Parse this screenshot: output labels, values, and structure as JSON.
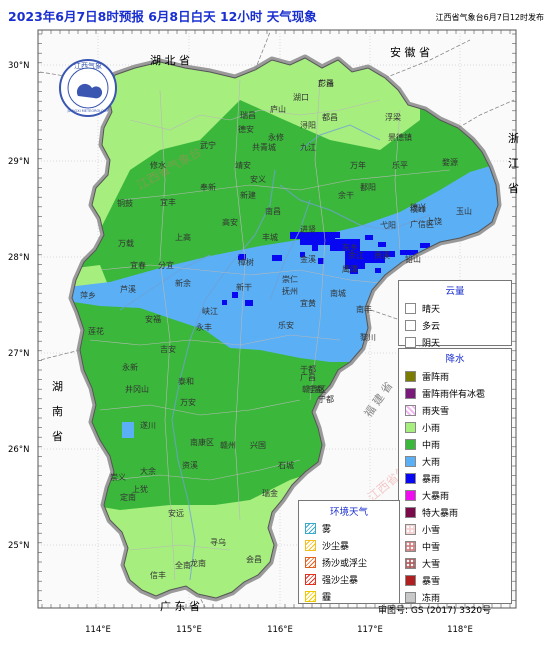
{
  "title": "2023年6月7日8时预报 6月8日白天 12小时 天气现象",
  "publisher": "江西省气象台6月7日12时发布",
  "logo": {
    "text": "江西气象",
    "subtext": "JIANGXI METEOROLOGY"
  },
  "lat_labels": [
    "30°N",
    "29°N",
    "28°N",
    "27°N",
    "26°N",
    "25°N"
  ],
  "lon_labels": [
    "114°E",
    "115°E",
    "116°E",
    "117°E",
    "118°E"
  ],
  "neighbor_provinces": {
    "hubei": "湖 北 省",
    "anhui": "安 徽 省",
    "zhejiang": [
      "浙",
      "江",
      "省"
    ],
    "hunan": [
      "湖",
      "南",
      "省"
    ],
    "fujian": [
      "福",
      "建",
      "省"
    ],
    "guangdong": "广 东 省"
  },
  "cities": [
    "彭泽",
    "湖口",
    "都昌",
    "瑞昌",
    "庐山",
    "浔阳",
    "修水",
    "武宁",
    "德安",
    "共青城",
    "永修",
    "九江",
    "浮梁",
    "景德镇",
    "乐平",
    "婺源",
    "万年",
    "德兴",
    "余干",
    "鄱阳",
    "靖安",
    "奉新",
    "安义",
    "南昌",
    "新建",
    "进贤",
    "高安",
    "丰城",
    "铜鼓",
    "宜丰",
    "上高",
    "万载",
    "宜春",
    "分宜",
    "新余",
    "樟树",
    "新干",
    "峡江",
    "萍乡",
    "芦溪",
    "莲花",
    "吉安",
    "安福",
    "永丰",
    "泰和",
    "万安",
    "遂川",
    "井冈山",
    "永新",
    "抚州",
    "崇仁",
    "宜黄",
    "南城",
    "南丰",
    "黎川",
    "广昌",
    "乐安",
    "鹰潭",
    "贵溪",
    "余江",
    "上饶",
    "玉山",
    "广信区",
    "铅山",
    "横峰",
    "弋阳",
    "东乡",
    "金溪",
    "资溪",
    "赣州",
    "兴国",
    "于都",
    "宁都",
    "石城",
    "瑞金",
    "会昌",
    "寻乌",
    "安远",
    "信丰",
    "全南",
    "龙南",
    "定南",
    "大余",
    "崇义",
    "上犹",
    "南康区",
    "赣县区",
    "宁都",
    "广昌"
  ],
  "cloud_legend": {
    "title": "云量",
    "items": [
      "晴天",
      "多云",
      "阴天"
    ]
  },
  "precip_legend": {
    "title": "降水",
    "items": [
      {
        "label": "雷阵雨",
        "color": "#7b7b00"
      },
      {
        "label": "雷阵雨伴有冰雹",
        "color": "#7a1a7a"
      },
      {
        "label": "雨夹雪",
        "color": "#f2b8f2",
        "pattern": "hatch"
      },
      {
        "label": "小雨",
        "color": "#a6ee7e"
      },
      {
        "label": "中雨",
        "color": "#3bb83b"
      },
      {
        "label": "大雨",
        "color": "#5aaff5"
      },
      {
        "label": "暴雨",
        "color": "#0707f2"
      },
      {
        "label": "大暴雨",
        "color": "#f00cf0"
      },
      {
        "label": "特大暴雨",
        "color": "#7a0a4a"
      },
      {
        "label": "小雪",
        "color": "#f4d0d0",
        "pattern": "dots"
      },
      {
        "label": "中雪",
        "color": "#d08080",
        "pattern": "dots"
      },
      {
        "label": "大雪",
        "color": "#b06060",
        "pattern": "dots"
      },
      {
        "label": "暴雪",
        "color": "#b02020"
      },
      {
        "label": "冻雨",
        "color": "#c8c8c8"
      }
    ]
  },
  "env_legend": {
    "title": "环境天气",
    "items": [
      {
        "label": "雾",
        "color": "#3aa8c8"
      },
      {
        "label": "沙尘暴",
        "color": "#f2c020"
      },
      {
        "label": "扬沙或浮尘",
        "color": "#e06020"
      },
      {
        "label": "强沙尘暴",
        "color": "#e03020"
      },
      {
        "label": "霾",
        "color": "#f0c800"
      }
    ]
  },
  "review_number": "审图号: GS (2017) 3320号",
  "watermarks": [
    "江西省气象台",
    "江西省气象台"
  ],
  "colors": {
    "light_rain": "#a6ee7e",
    "moderate_rain": "#3bb83b",
    "heavy_rain": "#5aaff5",
    "rainstorm": "#0707f2"
  }
}
